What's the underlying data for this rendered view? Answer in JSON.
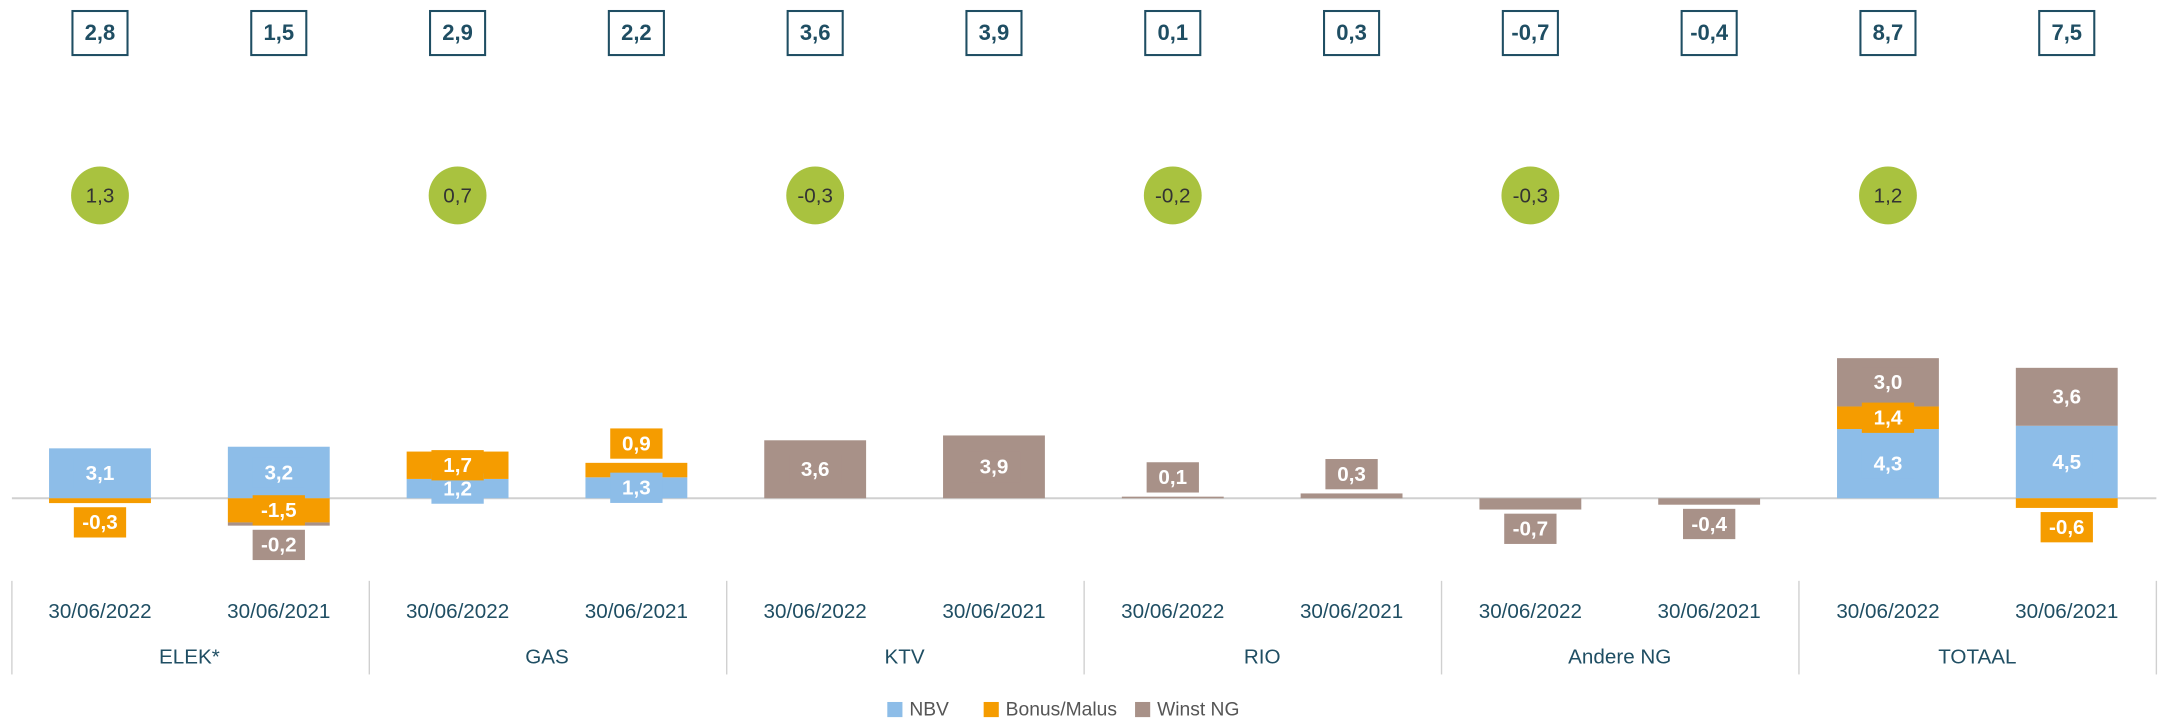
{
  "chart_data": {
    "type": "bar",
    "categories": [
      "30/06/2022",
      "30/06/2021",
      "30/06/2022",
      "30/06/2021",
      "30/06/2022",
      "30/06/2021",
      "30/06/2022",
      "30/06/2021",
      "30/06/2022",
      "30/06/2021",
      "30/06/2022",
      "30/06/2021"
    ],
    "groups": [
      "ELEK*",
      "GAS",
      "KTV",
      "RIO",
      "Andere NG",
      "TOTAAL"
    ],
    "series": [
      {
        "name": "NBV",
        "color": "#8dbde8",
        "values": [
          3.1,
          3.2,
          1.2,
          1.3,
          null,
          null,
          null,
          null,
          null,
          null,
          4.3,
          4.5
        ],
        "value_labels": [
          "3,1",
          "3,2",
          "1,2",
          "1,3",
          null,
          null,
          null,
          null,
          null,
          null,
          "4,3",
          "4,5"
        ]
      },
      {
        "name": "Bonus/Malus",
        "color": "#f59c00",
        "values": [
          -0.3,
          -1.5,
          1.7,
          0.9,
          null,
          null,
          null,
          null,
          null,
          null,
          1.4,
          -0.6
        ],
        "value_labels": [
          "-0,3",
          "-1,5",
          "1,7",
          "0,9",
          null,
          null,
          null,
          null,
          null,
          null,
          "1,4",
          "-0,6"
        ]
      },
      {
        "name": "Winst NG",
        "color": "#a89188",
        "values": [
          null,
          -0.2,
          null,
          null,
          3.6,
          3.9,
          0.1,
          0.3,
          -0.7,
          -0.4,
          3.0,
          3.6
        ],
        "value_labels": [
          null,
          "-0,2",
          null,
          null,
          "3,6",
          "3,9",
          "0,1",
          "0,3",
          "-0,7",
          "-0,4",
          "3,0",
          "3,6"
        ]
      }
    ],
    "totals": [
      2.8,
      1.5,
      2.9,
      2.2,
      3.6,
      3.9,
      0.1,
      0.3,
      -0.7,
      -0.4,
      8.7,
      7.5
    ],
    "totals_labels": [
      "2,8",
      "1,5",
      "2,9",
      "2,2",
      "3,6",
      "3,9",
      "0,1",
      "0,3",
      "-0,7",
      "-0,4",
      "8,7",
      "7,5"
    ],
    "differences": [
      1.3,
      0.7,
      -0.3,
      -0.2,
      -0.3,
      1.2
    ],
    "differences_labels": [
      "1,3",
      "0,7",
      "-0,3",
      "-0,2",
      "-0,3",
      "1,2"
    ],
    "difference_color": "#a9c23f",
    "legend": "bottom"
  }
}
